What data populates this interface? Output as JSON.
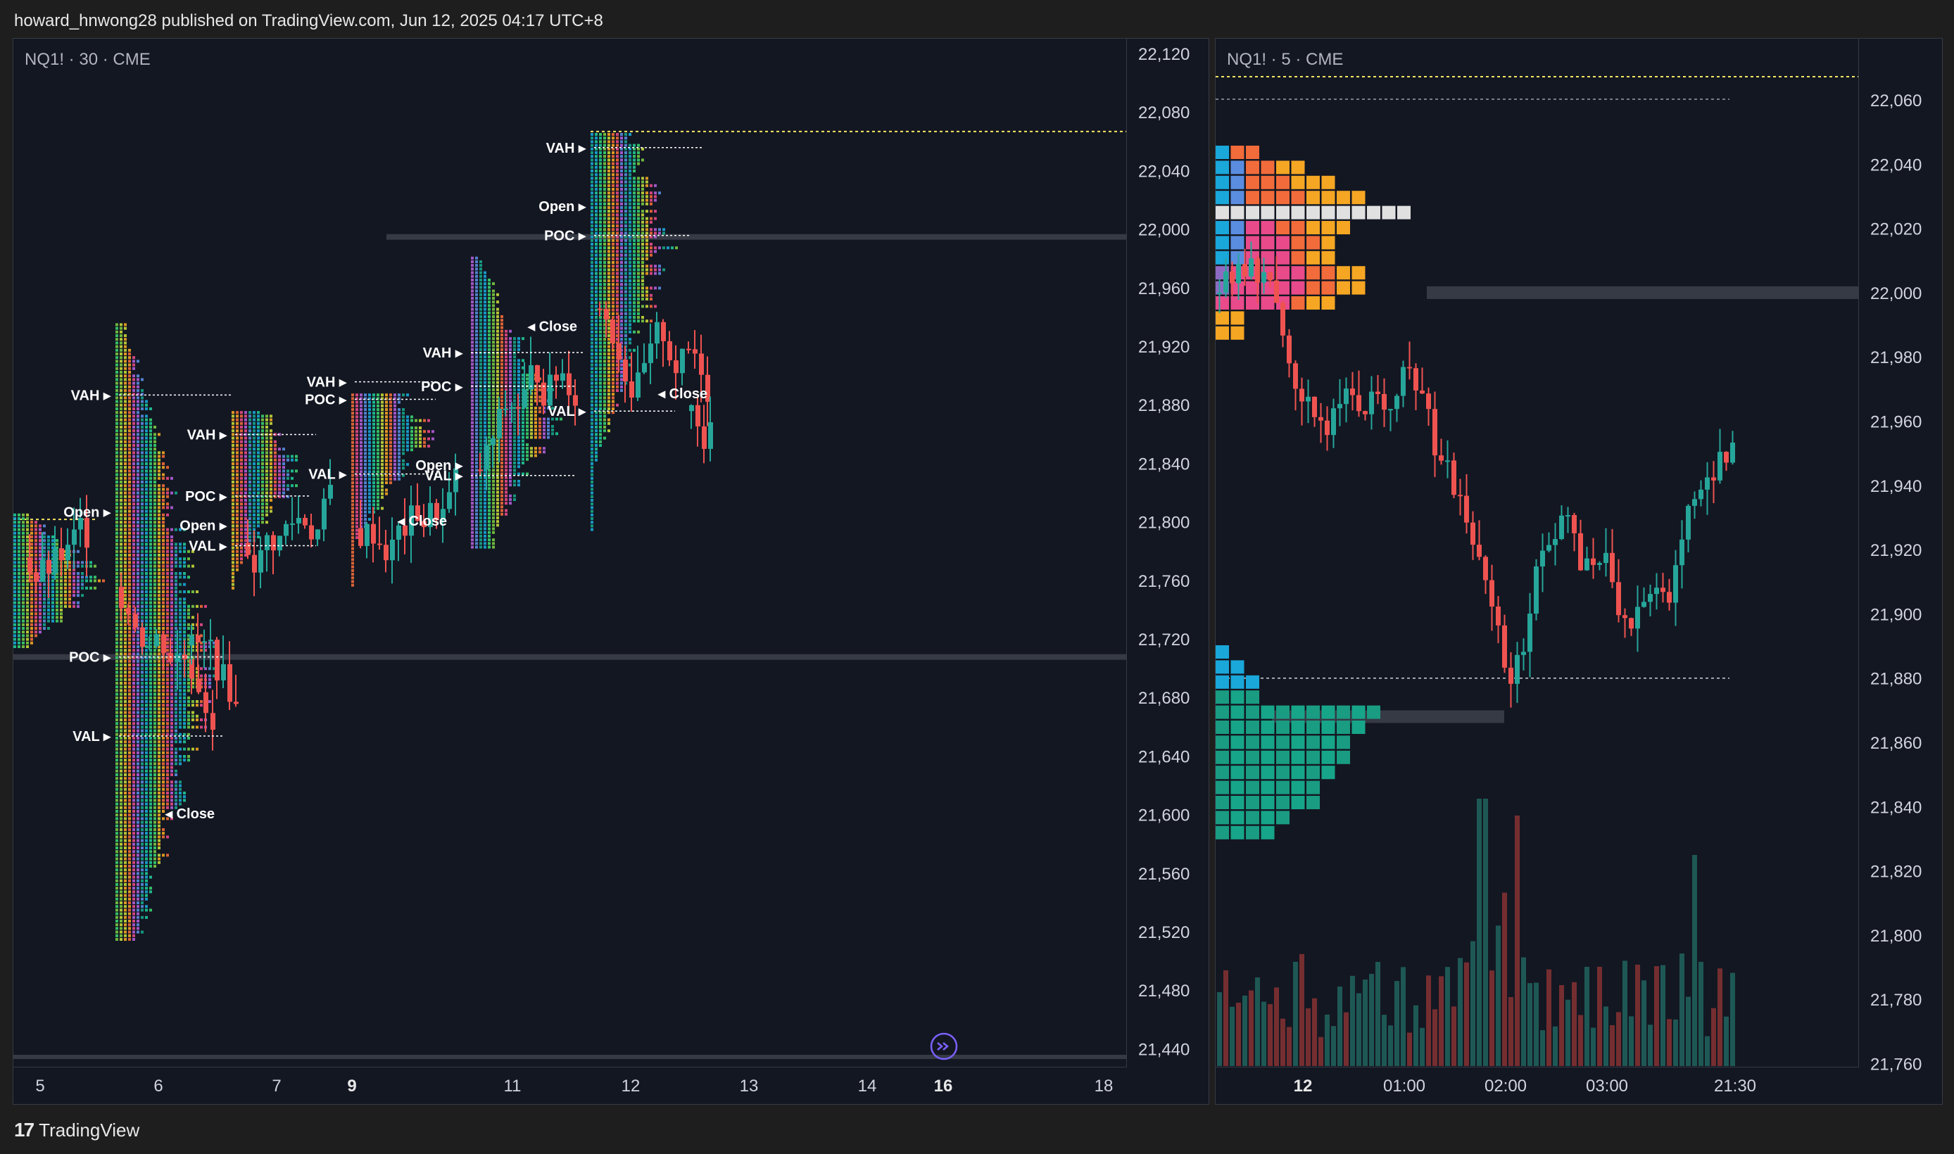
{
  "header": {
    "text": "howard_hnwong28 published on TradingView.com, Jun 12, 2025 04:17 UTC+8"
  },
  "footer": {
    "brand": "TradingView"
  },
  "left_chart": {
    "label": "NQ1! · 30 · CME",
    "price_labels": [
      "22,120",
      "22,080",
      "22,040",
      "22,000",
      "21,960",
      "21,920",
      "21,880",
      "21,840",
      "21,800",
      "21,760",
      "21,720",
      "21,680",
      "21,640",
      "21,600",
      "21,560",
      "21,520",
      "21,480",
      "21,440"
    ],
    "time_labels": [
      "5",
      "6",
      "7",
      "9",
      "11",
      "12",
      "13",
      "14",
      "16",
      "18"
    ],
    "bold_time_labels": [
      "9",
      "16"
    ],
    "level_labels": [
      "VAH",
      "POC",
      "VAL",
      "Open",
      "Close"
    ]
  },
  "right_chart": {
    "label": "NQ1! · 5 · CME",
    "price_labels": [
      "22,060",
      "22,040",
      "22,020",
      "22,000",
      "21,980",
      "21,960",
      "21,940",
      "21,920",
      "21,900",
      "21,880",
      "21,860",
      "21,840",
      "21,820",
      "21,800",
      "21,780",
      "21,760"
    ],
    "time_labels": [
      "12",
      "01:00",
      "02:00",
      "03:00",
      "21:30"
    ],
    "bold_time_labels": [
      "12"
    ]
  },
  "colors": {
    "background": "#131722",
    "bull": "#26a69a",
    "bear": "#ef5350",
    "poc_row": "#e0e0e0",
    "poc_band": "#363a45",
    "vah_line": "#f5e663"
  },
  "icons": [
    "tradingview-logo-icon",
    "goto-realtime-icon"
  ]
}
